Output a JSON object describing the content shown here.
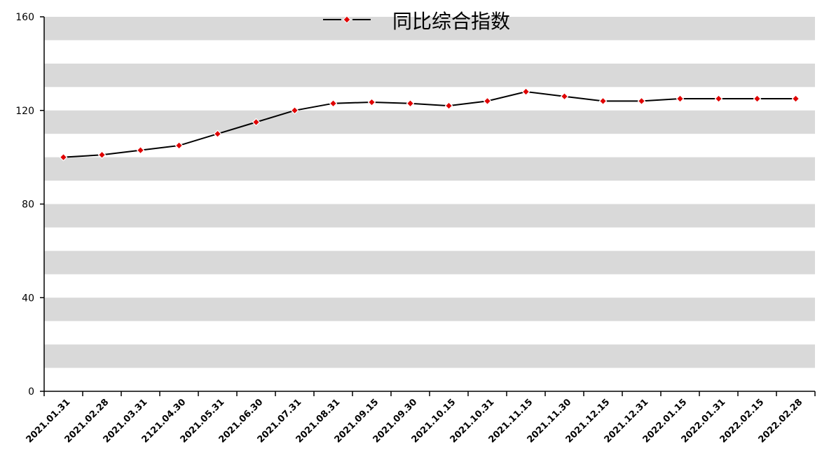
{
  "chart_data": {
    "type": "line",
    "title": "",
    "xlabel": "",
    "ylabel": "",
    "ylim": [
      0,
      160
    ],
    "yticks": [
      0,
      40,
      80,
      120,
      160
    ],
    "grid": "horizontal alternating bands",
    "legend_position": "top-center",
    "categories": [
      "2021.01.31",
      "2021.02.28",
      "2021.03.31",
      "2121.04.30",
      "2021.05.31",
      "2021.06.30",
      "2021.07.31",
      "2021.08.31",
      "2021.09.15",
      "2021.09.30",
      "2021.10.15",
      "2021.10.31",
      "2021.11.15",
      "2021.11.30",
      "2021.12.15",
      "2021.12.31",
      "2022.01.15",
      "2022.01.31",
      "2022.02.15",
      "2022.02.28"
    ],
    "series": [
      {
        "name": "同比综合指数",
        "line_color": "#000000",
        "marker_color": "#e00000",
        "values": [
          100,
          101,
          103,
          105,
          110,
          115,
          120,
          123,
          123.5,
          123,
          122,
          124,
          128,
          126,
          124,
          124,
          125,
          125,
          125,
          125
        ]
      }
    ]
  },
  "colors": {
    "band": "#d9d9d9",
    "axis": "#000000"
  }
}
